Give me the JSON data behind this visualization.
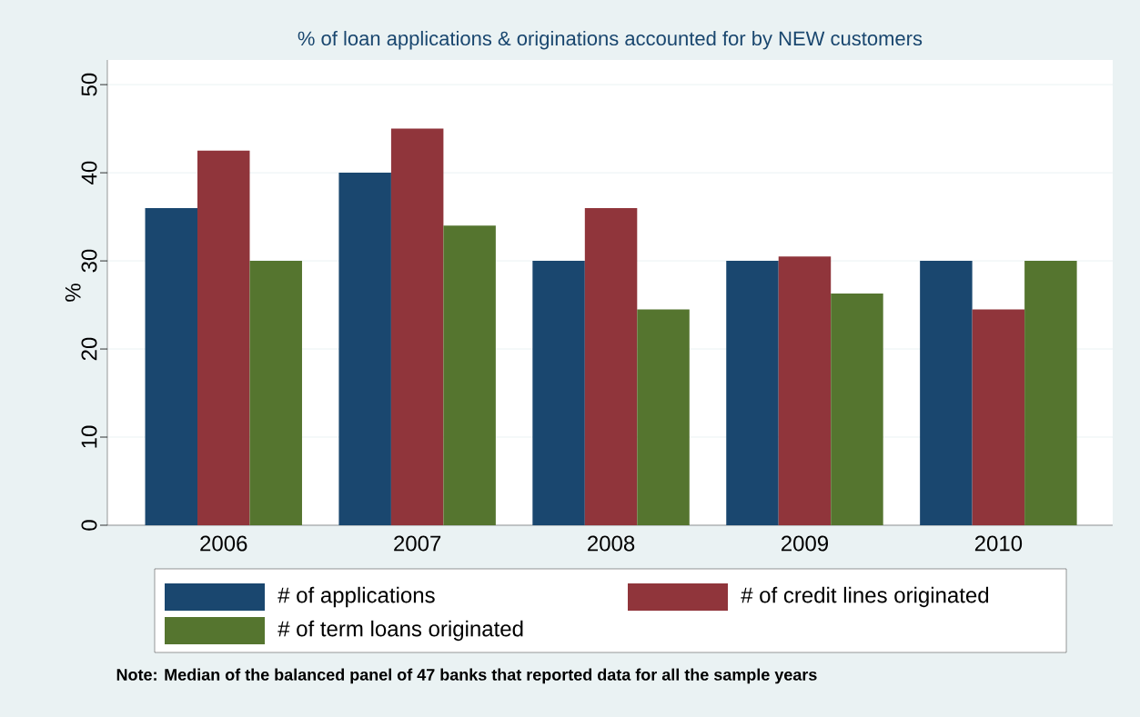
{
  "chart_data": {
    "type": "bar",
    "title": "% of loan applications & originations accounted for by NEW customers",
    "ylabel": "%",
    "categories": [
      "2006",
      "2007",
      "2008",
      "2009",
      "2010"
    ],
    "series": [
      {
        "name": "# of applications",
        "color": "#1a476f",
        "values": [
          36,
          40,
          30,
          30,
          30
        ]
      },
      {
        "name": "# of credit lines originated",
        "color": "#90353b",
        "values": [
          42.5,
          45,
          36,
          30.5,
          24.5
        ]
      },
      {
        "name": "# of term loans originated",
        "color": "#55752f",
        "values": [
          30,
          34,
          24.5,
          26.3,
          30
        ]
      }
    ],
    "ylim": [
      0,
      52.8
    ],
    "yticks": [
      0,
      10,
      20,
      30,
      40,
      50
    ],
    "grid": "y",
    "legend": "bottom",
    "annotations": [
      "Note: Median of the balanced panel of 47 banks that reported data for all the sample years"
    ]
  }
}
